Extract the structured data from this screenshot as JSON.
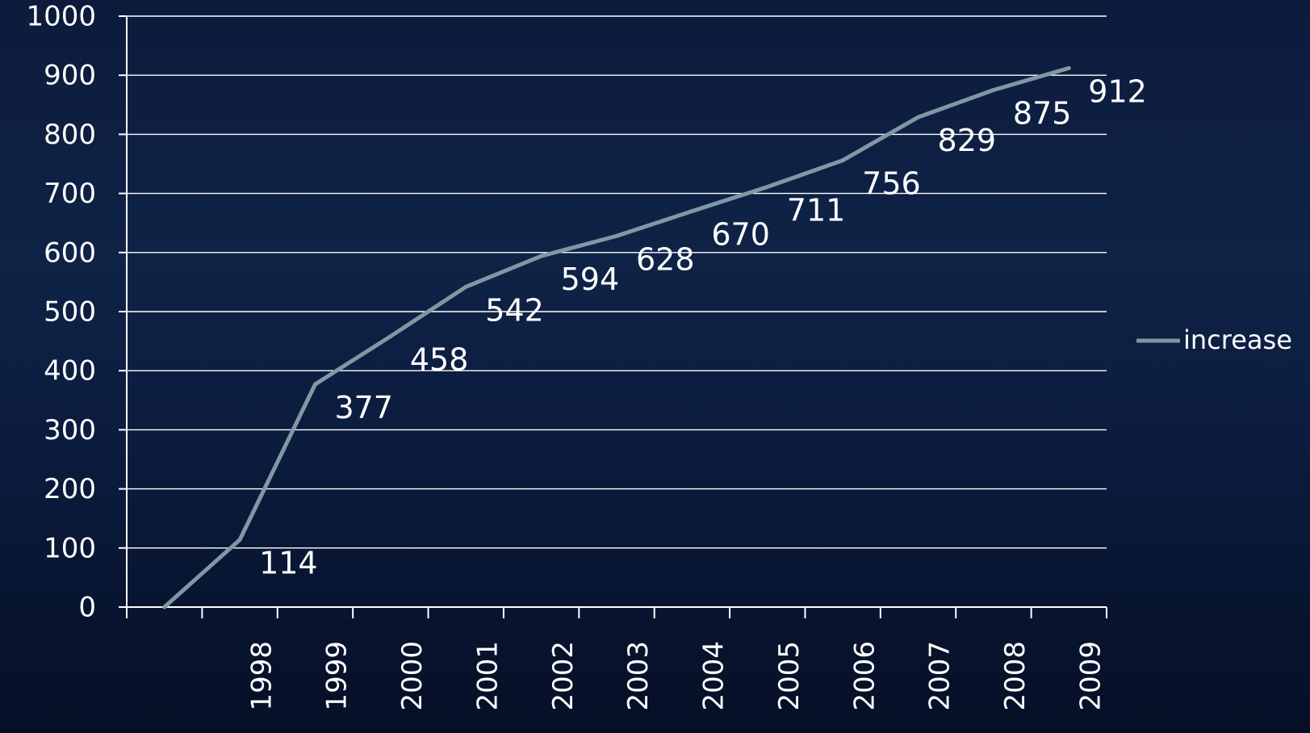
{
  "chart_data": {
    "type": "line",
    "title": "",
    "xlabel": "",
    "ylabel": "",
    "categories": [
      "",
      "1998",
      "1999",
      "2000",
      "2001",
      "2002",
      "2003",
      "2004",
      "2005",
      "2006",
      "2007",
      "2008",
      "2009"
    ],
    "series": [
      {
        "name": "increase",
        "color": "#7f98a4",
        "values": [
          0,
          114,
          377,
          458,
          542,
          594,
          628,
          670,
          711,
          756,
          829,
          875,
          912
        ],
        "labels": [
          "",
          "114",
          "377",
          "458",
          "542",
          "594",
          "628",
          "670",
          "711",
          "756",
          "829",
          "875",
          "912"
        ]
      }
    ],
    "ylim": [
      0,
      1000
    ],
    "yticks": [
      0,
      100,
      200,
      300,
      400,
      500,
      600,
      700,
      800,
      900,
      1000
    ],
    "ytick_labels": [
      "0",
      "100",
      "200",
      "300",
      "400",
      "500",
      "600",
      "700",
      "800",
      "900",
      "1000"
    ],
    "grid": true,
    "legend_position": "right"
  }
}
